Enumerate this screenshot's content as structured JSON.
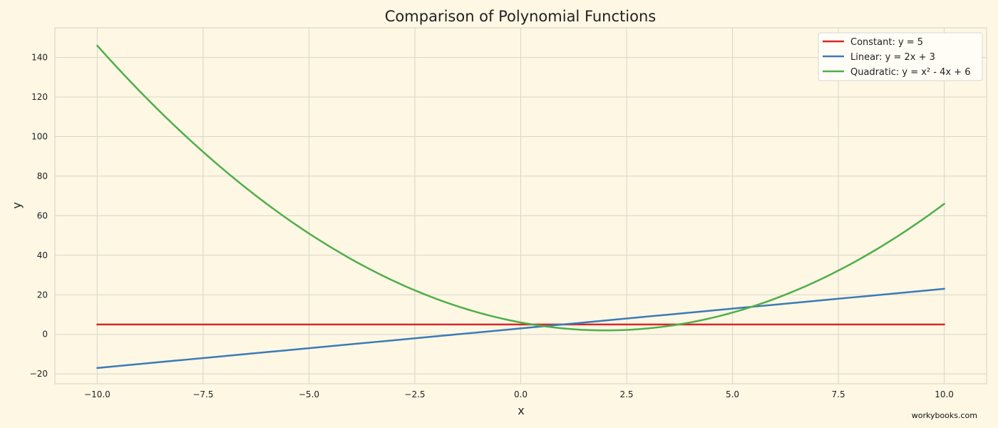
{
  "chart_data": {
    "type": "line",
    "title": "Comparison of Polynomial Functions",
    "xlabel": "x",
    "ylabel": "y",
    "xlim": [
      -11,
      11
    ],
    "ylim": [
      -25,
      155
    ],
    "x_ticks": [
      -10,
      -7.5,
      -5,
      -2.5,
      0,
      2.5,
      5,
      7.5,
      10
    ],
    "x_tick_labels": [
      "−10.0",
      "−7.5",
      "−5.0",
      "−2.5",
      "0.0",
      "2.5",
      "5.0",
      "7.5",
      "10.0"
    ],
    "y_ticks": [
      -20,
      0,
      20,
      40,
      60,
      80,
      100,
      120,
      140
    ],
    "y_tick_labels": [
      "−20",
      "0",
      "20",
      "40",
      "60",
      "80",
      "100",
      "120",
      "140"
    ],
    "grid": true,
    "legend_position": "top-right",
    "series": [
      {
        "name": "Constant: y = 5",
        "color": "#d62728",
        "x": [
          -10,
          -7.5,
          -5,
          -2.5,
          0,
          2.5,
          5,
          7.5,
          10
        ],
        "y": [
          5,
          5,
          5,
          5,
          5,
          5,
          5,
          5,
          5
        ]
      },
      {
        "name": "Linear: y = 2x + 3",
        "color": "#3b7bb5",
        "x": [
          -10,
          -7.5,
          -5,
          -2.5,
          0,
          2.5,
          5,
          7.5,
          10
        ],
        "y": [
          -17,
          -12,
          -7,
          -2,
          3,
          8,
          13,
          18,
          23
        ]
      },
      {
        "name": "Quadratic: y = x² - 4x + 6",
        "color": "#4daf4a",
        "x": [
          -10,
          -9,
          -8,
          -7,
          -6,
          -5,
          -4,
          -3,
          -2,
          -1,
          0,
          1,
          2,
          3,
          4,
          5,
          6,
          7,
          8,
          9,
          10
        ],
        "y": [
          146,
          123,
          102,
          83,
          66,
          51,
          38,
          27,
          18,
          11,
          6,
          3,
          2,
          3,
          6,
          11,
          18,
          27,
          38,
          51,
          66
        ]
      }
    ]
  },
  "watermark": "workybooks.com"
}
